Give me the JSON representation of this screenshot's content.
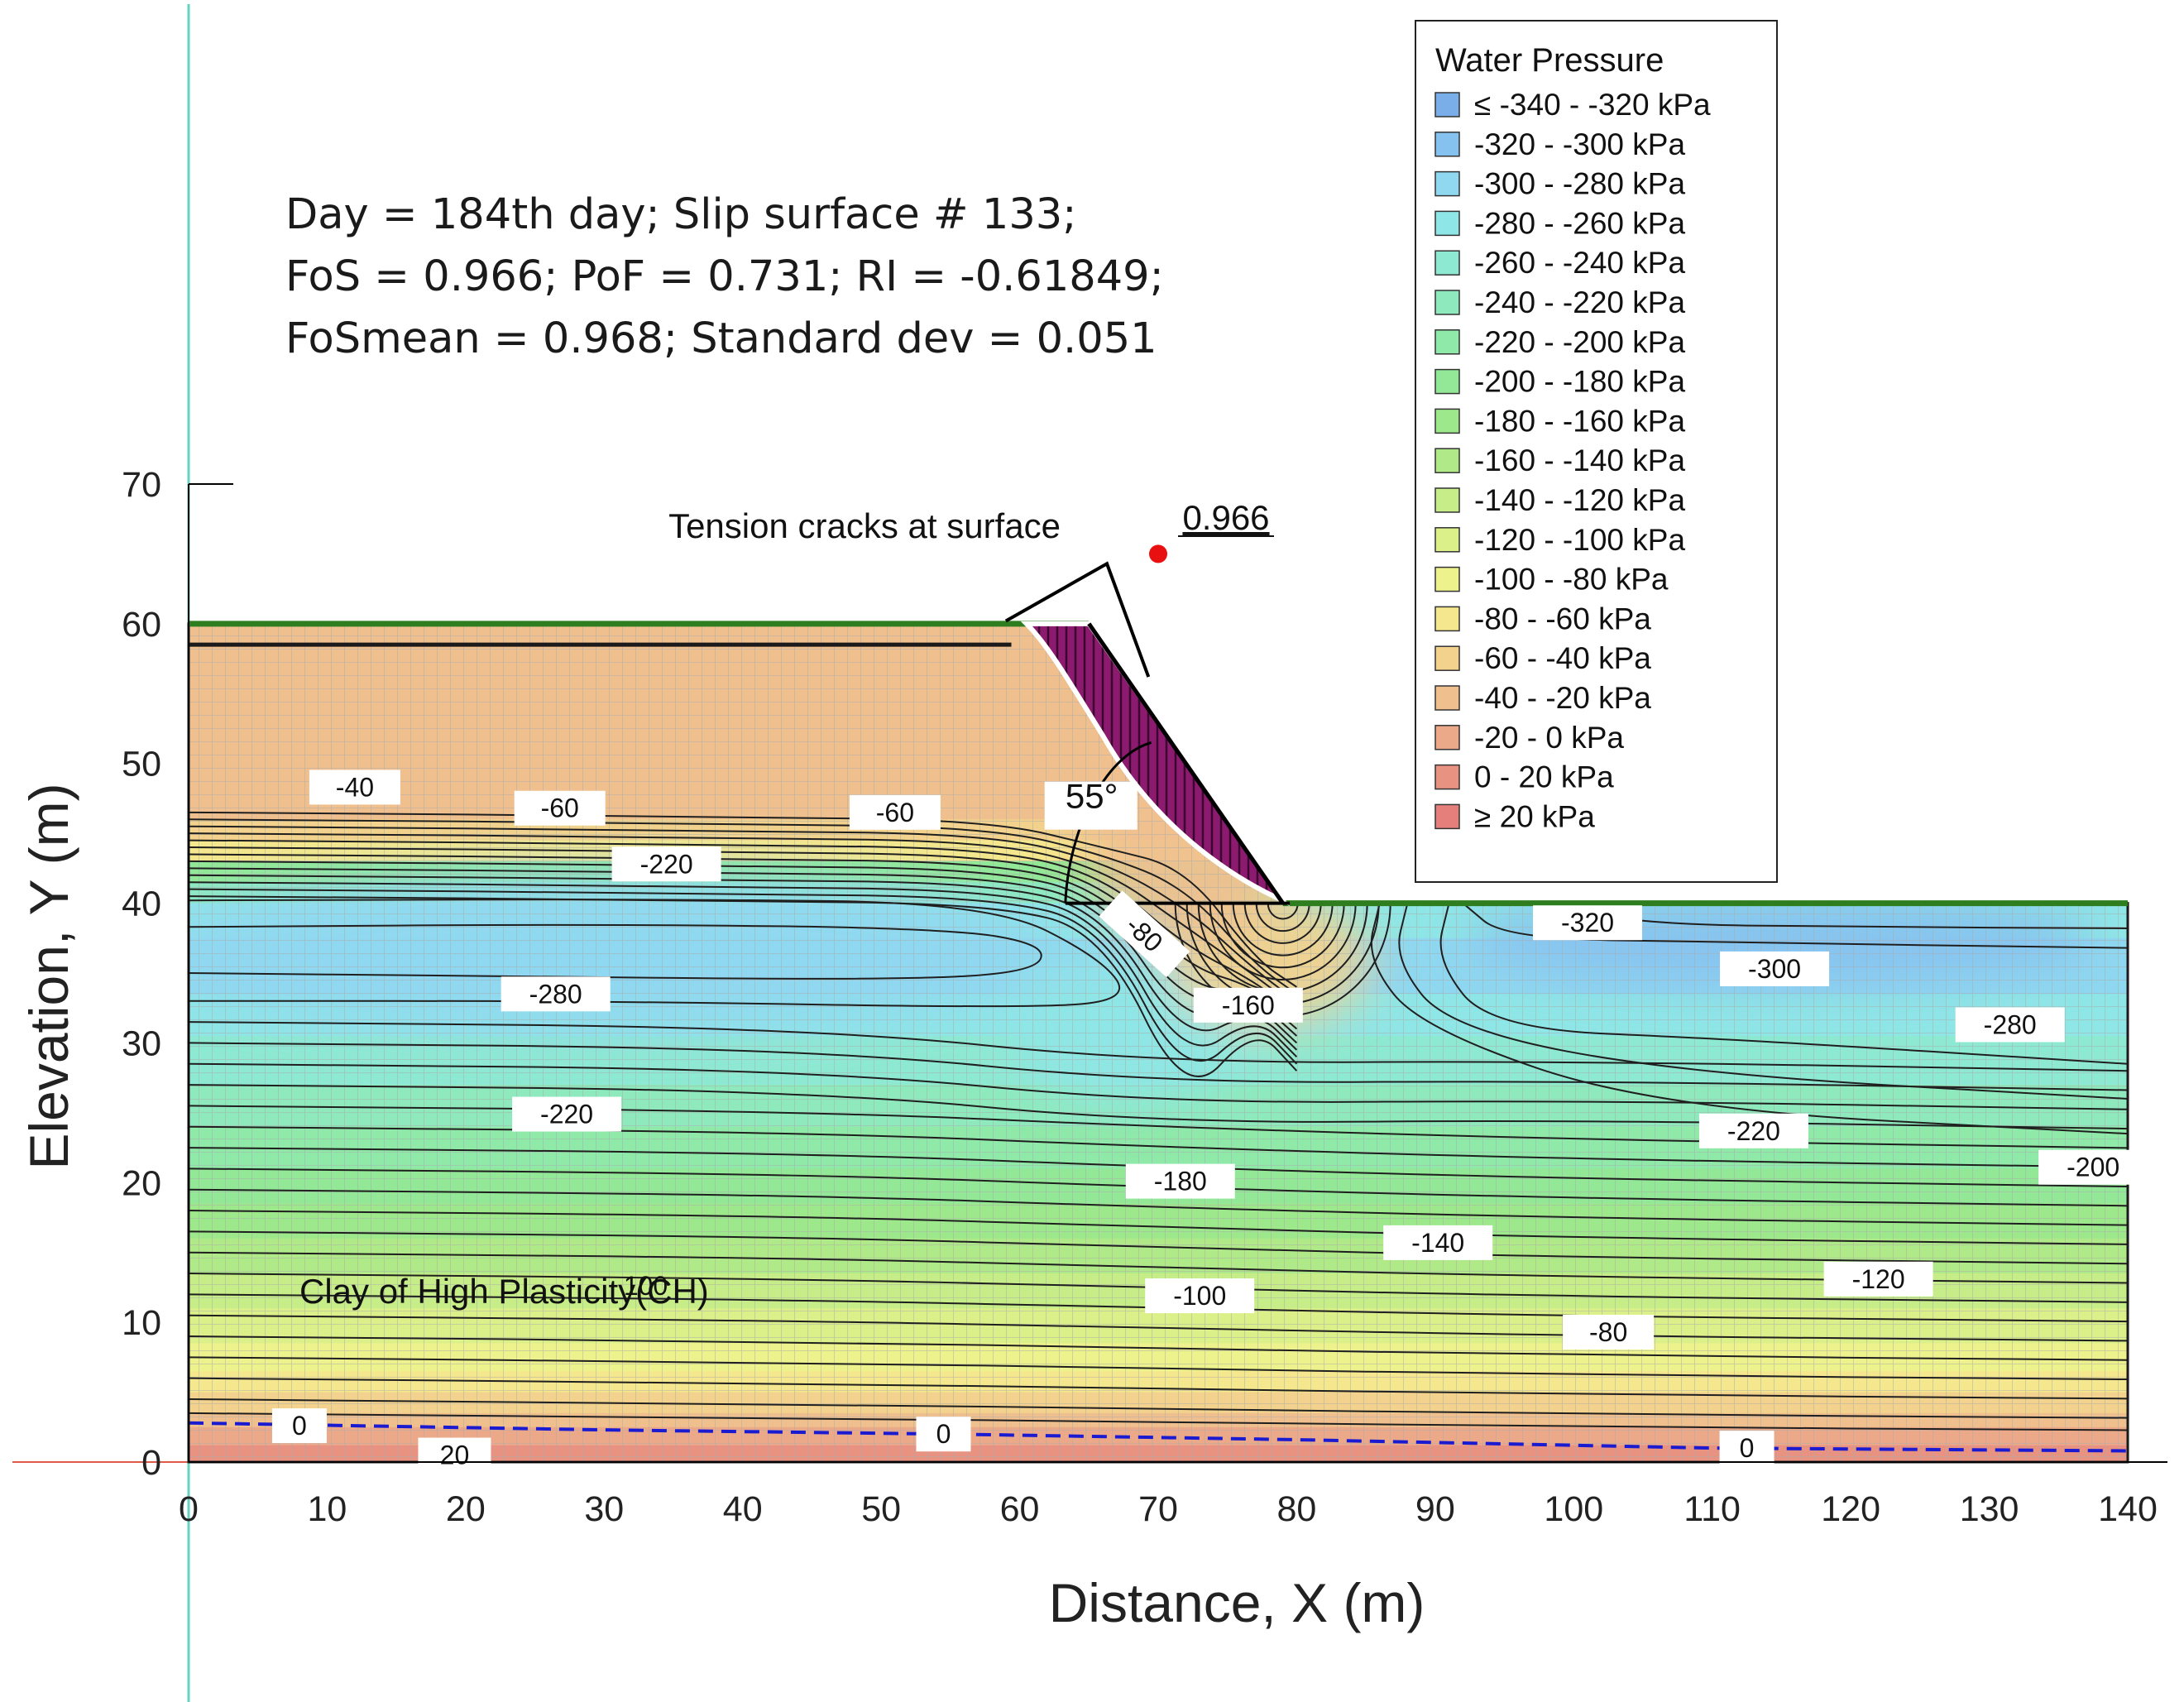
{
  "chart_data": {
    "type": "heatmap",
    "title": "",
    "xlabel": "Distance, X (m)",
    "ylabel": "Elevation, Y (m)",
    "xlim": [
      0,
      140
    ],
    "ylim": [
      0,
      70
    ],
    "x_ticks": [
      "0",
      "10",
      "20",
      "30",
      "40",
      "50",
      "60",
      "70",
      "80",
      "90",
      "100",
      "110",
      "120",
      "130",
      "140"
    ],
    "y_ticks": [
      "0",
      "10",
      "20",
      "30",
      "40",
      "50",
      "60",
      "70"
    ],
    "info_lines": [
      "Day = 184th day; Slip surface # 133;",
      "FoS = 0.966; PoF = 0.731; RI = -0.61849;",
      "FoSmean = 0.968; Standard dev = 0.051"
    ],
    "slope_geometry": {
      "crest_elevation": 60,
      "toe_elevation": 40,
      "crest_x": 65,
      "toe_x": 79,
      "angle_label": "55°"
    },
    "annotations": {
      "tension_cracks": "Tension cracks at surface",
      "fos_marker": "0.966",
      "fos_marker_point": [
        70,
        65
      ],
      "material": "Clay of High Plasticity(CH)"
    },
    "legend": {
      "title": "Water Pressure",
      "position": "top-right",
      "items": [
        {
          "label": "≤ -340 - -320 kPa",
          "color": "#7aaee8"
        },
        {
          "label": "-320 - -300 kPa",
          "color": "#86c2ef"
        },
        {
          "label": "-300 - -280 kPa",
          "color": "#8fd8f0"
        },
        {
          "label": "-280 - -260 kPa",
          "color": "#8fe6e6"
        },
        {
          "label": "-260 - -240 kPa",
          "color": "#8ee9d2"
        },
        {
          "label": "-240 - -220 kPa",
          "color": "#8eeabd"
        },
        {
          "label": "-220 - -200 kPa",
          "color": "#8fe9a8"
        },
        {
          "label": "-200 - -180 kPa",
          "color": "#92e896"
        },
        {
          "label": "-180 - -160 kPa",
          "color": "#9ee88c"
        },
        {
          "label": "-160 - -140 kPa",
          "color": "#b0ea88"
        },
        {
          "label": "-140 - -120 kPa",
          "color": "#c6ed87"
        },
        {
          "label": "-120 - -100 kPa",
          "color": "#dcf08a"
        },
        {
          "label": "-100 - -80 kPa",
          "color": "#eef28d"
        },
        {
          "label": "-80 - -60 kPa",
          "color": "#f4e78d"
        },
        {
          "label": "-60 - -40 kPa",
          "color": "#f2d28c"
        },
        {
          "label": "-40 - -20 kPa",
          "color": "#efc08e"
        },
        {
          "label": "-20 - 0 kPa",
          "color": "#eca98a"
        },
        {
          "label": "0 - 20 kPa",
          "color": "#e89282"
        },
        {
          "label": "≥ 20 kPa",
          "color": "#e57f7c"
        }
      ]
    },
    "contour_labels": [
      {
        "text": "-40",
        "x": 12,
        "y": 48.3
      },
      {
        "text": "-60",
        "x": 26.8,
        "y": 46.8
      },
      {
        "text": "-60",
        "x": 51,
        "y": 46.5
      },
      {
        "text": "-220",
        "x": 34.5,
        "y": 42.8
      },
      {
        "text": "-80",
        "x": 69,
        "y": 37.8
      },
      {
        "text": "-320",
        "x": 101,
        "y": 38.6
      },
      {
        "text": "-300",
        "x": 114.5,
        "y": 35.3
      },
      {
        "text": "-280",
        "x": 26.5,
        "y": 33.5
      },
      {
        "text": "-160",
        "x": 76.5,
        "y": 32.7
      },
      {
        "text": "-280",
        "x": 131.5,
        "y": 31.3
      },
      {
        "text": "-220",
        "x": 27.3,
        "y": 24.9
      },
      {
        "text": "-220",
        "x": 113,
        "y": 23.7
      },
      {
        "text": "-200",
        "x": 137.5,
        "y": 21.1
      },
      {
        "text": "-180",
        "x": 71.6,
        "y": 20.1
      },
      {
        "text": "-140",
        "x": 90.2,
        "y": 15.7
      },
      {
        "text": "-120",
        "x": 122,
        "y": 13.1
      },
      {
        "text": "-100",
        "x": 73,
        "y": 11.9
      },
      {
        "text": "-80",
        "x": 102.5,
        "y": 9.3
      },
      {
        "text": "100",
        "x": 33,
        "y": 12.6
      },
      {
        "text": "0",
        "x": 8,
        "y": 2.6
      },
      {
        "text": "0",
        "x": 54.5,
        "y": 2.0
      },
      {
        "text": "0",
        "x": 112.5,
        "y": 1.0
      },
      {
        "text": "20",
        "x": 19.2,
        "y": 0.5
      }
    ],
    "water_table": [
      [
        0,
        2.8
      ],
      [
        30,
        2.3
      ],
      [
        55,
        2.0
      ],
      [
        80,
        1.6
      ],
      [
        110,
        1.0
      ],
      [
        140,
        0.8
      ]
    ]
  }
}
